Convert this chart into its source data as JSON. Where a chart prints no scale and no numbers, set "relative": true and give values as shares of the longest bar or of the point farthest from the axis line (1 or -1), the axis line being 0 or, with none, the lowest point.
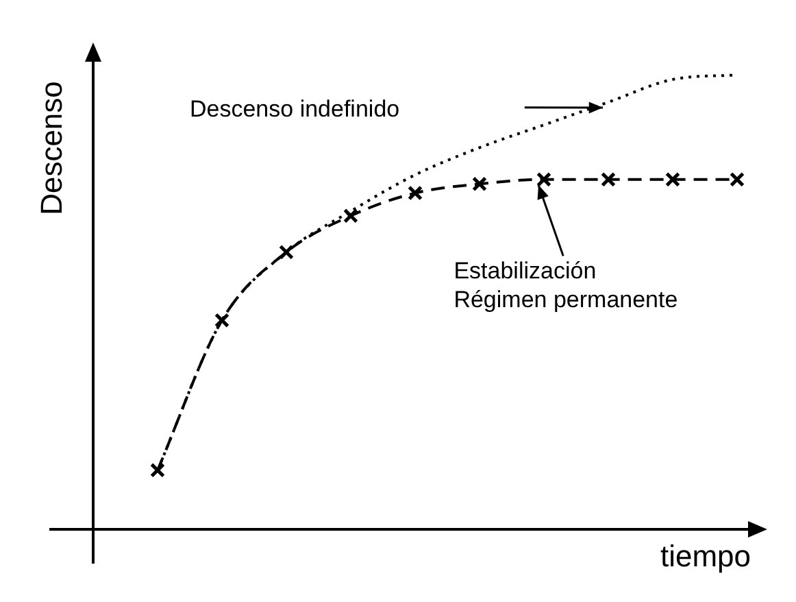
{
  "chart_data": {
    "type": "line",
    "relative": true,
    "xlabel": "tiempo",
    "ylabel": "Descenso",
    "categories": [
      null,
      null,
      null,
      null,
      null,
      null,
      null,
      null,
      null,
      null,
      null
    ],
    "legend": false,
    "grid": false,
    "series": [
      {
        "name": "Descenso indefinido",
        "color": "#000000",
        "line_style": "dotted",
        "marker": "none",
        "values": [
          null,
          0.13,
          0.46,
          0.61,
          0.7,
          0.78,
          0.84,
          0.89,
          0.94,
          0.99,
          1
        ]
      },
      {
        "name": "Estabilización\nRégimen permanente",
        "color": "#000000",
        "line_style": "dashed",
        "marker": "cross",
        "values": [
          null,
          0.13,
          0.46,
          0.61,
          0.69,
          0.74,
          0.76,
          0.77,
          0.77,
          0.77,
          0.77
        ]
      }
    ]
  }
}
